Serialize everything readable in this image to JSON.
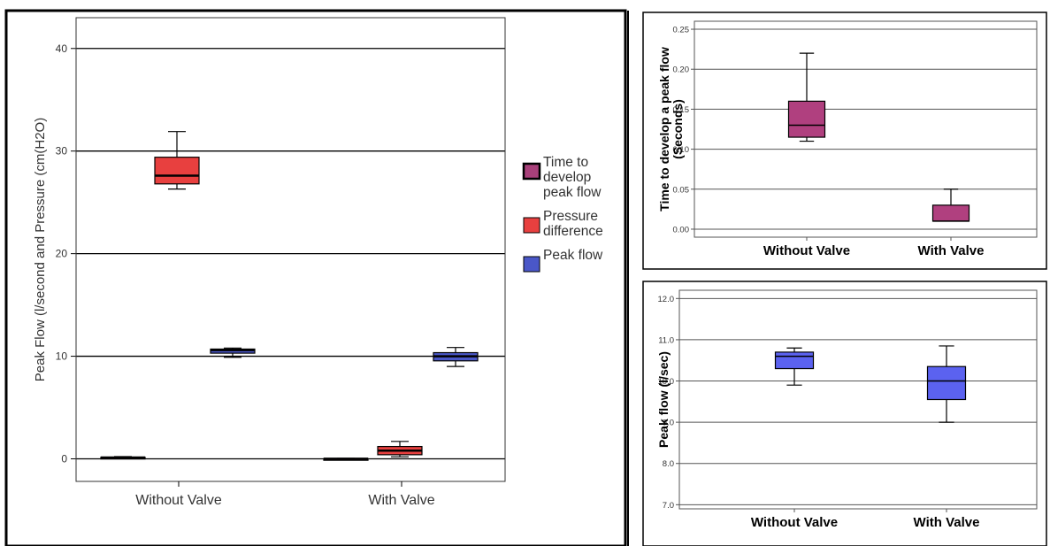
{
  "chart_data": [
    {
      "type": "box",
      "ylabel": "Peak Flow (l/second and Pressure (cm(H2O)",
      "categories": [
        "Without Valve",
        "With Valve"
      ],
      "ylim": [
        -2.2,
        43
      ],
      "yticks": [
        0,
        10,
        20,
        30,
        40
      ],
      "legend_position": "right",
      "legend": [
        {
          "label": "Time to develop peak flow",
          "color": "#a8407a"
        },
        {
          "label": "Pressure difference",
          "color": "#e8403f"
        },
        {
          "label": "Peak flow",
          "color": "#4a57c8"
        }
      ],
      "series": [
        {
          "name": "Time to develop peak flow",
          "color": "#a8407a",
          "boxes": [
            {
              "category": "Without Valve",
              "min": 0.11,
              "q1": 0.115,
              "median": 0.13,
              "q3": 0.16,
              "max": 0.22
            },
            {
              "category": "With Valve",
              "min": 0.01,
              "q1": 0.01,
              "median": 0.01,
              "q3": 0.03,
              "max": 0.05
            }
          ]
        },
        {
          "name": "Pressure difference",
          "color": "#e8403f",
          "boxes": [
            {
              "category": "Without Valve",
              "min": 26.3,
              "q1": 26.8,
              "median": 27.6,
              "q3": 29.4,
              "max": 31.9
            },
            {
              "category": "With Valve",
              "min": 0.2,
              "q1": 0.4,
              "median": 0.8,
              "q3": 1.2,
              "max": 1.7
            }
          ]
        },
        {
          "name": "Peak flow",
          "color": "#4a57c8",
          "boxes": [
            {
              "category": "Without Valve",
              "min": 9.9,
              "q1": 10.3,
              "median": 10.6,
              "q3": 10.7,
              "max": 10.8
            },
            {
              "category": "With Valve",
              "min": 9.0,
              "q1": 9.55,
              "median": 10.0,
              "q3": 10.35,
              "max": 10.85
            }
          ]
        }
      ]
    },
    {
      "type": "box",
      "ylabel": "Time to develop a peak flow (Seconds)",
      "categories": [
        "Without Valve",
        "With Valve"
      ],
      "ylim": [
        -0.01,
        0.26
      ],
      "yticks": [
        "0.00",
        "0.05",
        "0.10",
        "0.15",
        "0.20",
        "0.25"
      ],
      "color": "#b0407f",
      "boxes": [
        {
          "category": "Without Valve",
          "min": 0.11,
          "q1": 0.115,
          "median": 0.13,
          "q3": 0.16,
          "max": 0.22
        },
        {
          "category": "With Valve",
          "min": 0.01,
          "q1": 0.01,
          "median": 0.01,
          "q3": 0.03,
          "max": 0.05
        }
      ]
    },
    {
      "type": "box",
      "ylabel": "Peak flow (l/sec)",
      "categories": [
        "Without Valve",
        "With Valve"
      ],
      "ylim": [
        6.9,
        12.2
      ],
      "yticks": [
        "7.0",
        "8.0",
        "9.0",
        "10.0",
        "11.0",
        "12.0"
      ],
      "color": "#5b62f0",
      "boxes": [
        {
          "category": "Without Valve",
          "min": 9.9,
          "q1": 10.3,
          "median": 10.6,
          "q3": 10.7,
          "max": 10.8
        },
        {
          "category": "With Valve",
          "min": 9.0,
          "q1": 9.55,
          "median": 10.0,
          "q3": 10.35,
          "max": 10.85
        }
      ]
    }
  ]
}
